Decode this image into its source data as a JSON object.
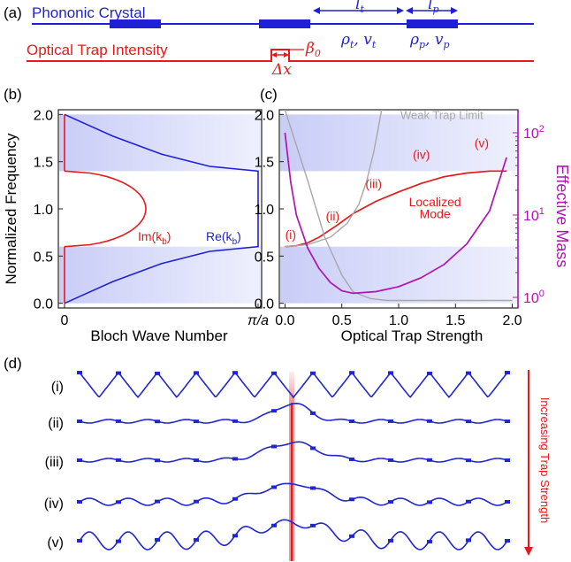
{
  "colors": {
    "crystal": "#1f1fd6",
    "trap": "#e8191b",
    "effmass": "#b012b3",
    "weak": "#a8a8a8",
    "band_fill": "#d9dcfa",
    "mode": "#2026d0"
  },
  "panel_a": {
    "label": "(a)",
    "crystal_label": "Phononic Crystal",
    "trap_label": "Optical Trap Intensity",
    "lt": "l",
    "lt_sub": "t",
    "lp": "l",
    "lp_sub": "p",
    "rho_t": "ρ",
    "rho_t_sub": "t",
    "v_t": "v",
    "v_t_sub": "t",
    "rho_p": "ρ",
    "rho_p_sub": "p",
    "v_p": "v",
    "v_p_sub": "p",
    "beta": "β",
    "beta_sub": "0",
    "dx": "Δx"
  },
  "chart_data": [
    {
      "panel": "(b)",
      "type": "line",
      "xlabel": "Bloch Wave Number",
      "ylabel": "Normalized Frequency",
      "x_ticks": [
        "0",
        "π/a"
      ],
      "y_ticks": [
        "0.0",
        "0.5",
        "1.0",
        "1.5",
        "2.0"
      ],
      "ylim": [
        -0.05,
        2.05
      ],
      "bandgaps": [
        [
          0.0,
          0.6
        ],
        [
          1.4,
          2.0
        ]
      ],
      "series": [
        {
          "name": "Re(k_b)",
          "label_text": "Re(k",
          "label_sub": "b",
          "label_tail": ")",
          "color": "#1f1fd6",
          "x": [
            0,
            0.25,
            0.5,
            0.75,
            1.0
          ],
          "y_lower": [
            0.0,
            0.23,
            0.42,
            0.55,
            0.6
          ],
          "y_upper": [
            2.0,
            1.77,
            1.58,
            1.45,
            1.4
          ]
        },
        {
          "name": "Im(k_b)",
          "label_text": "Im(k",
          "label_sub": "b",
          "label_tail": ")",
          "color": "#e8191b",
          "x": [
            0,
            0.2,
            0.35,
            0.42,
            0.35,
            0.2,
            0
          ],
          "y": [
            0.6,
            0.68,
            0.82,
            1.0,
            1.18,
            1.32,
            1.4
          ]
        }
      ]
    },
    {
      "panel": "(c)",
      "type": "line",
      "xlabel": "Optical Trap Strength",
      "ylabel_left": "",
      "ylabel_right": "Effective Mass",
      "x_ticks": [
        "0.0",
        "0.5",
        "1.0",
        "1.5",
        "2.0"
      ],
      "y_ticks": [
        "0.0",
        "0.5",
        "1.0",
        "1.5",
        "2.0"
      ],
      "y2_ticks": [
        "10",
        "10",
        "10"
      ],
      "y2_ticks_exp": [
        "0",
        "1",
        "2"
      ],
      "xlim": [
        -0.05,
        2.05
      ],
      "ylim": [
        -0.05,
        2.05
      ],
      "y2_log_range": [
        0.0,
        2.0
      ],
      "bandgaps": [
        [
          0.0,
          0.6
        ],
        [
          1.4,
          2.0
        ]
      ],
      "series": [
        {
          "name": "Localized Mode",
          "color": "#e8191b",
          "x": [
            0.0,
            0.1,
            0.2,
            0.3,
            0.45,
            0.6,
            0.8,
            1.0,
            1.2,
            1.4,
            1.6,
            1.8,
            1.95
          ],
          "y": [
            0.6,
            0.61,
            0.64,
            0.7,
            0.82,
            0.95,
            1.08,
            1.18,
            1.27,
            1.34,
            1.38,
            1.4,
            1.4
          ]
        },
        {
          "name": "Weak Trap Limit",
          "color": "#a8a8a8",
          "x": [
            0.0,
            0.2,
            0.4,
            0.55,
            0.65,
            0.72,
            0.78,
            0.82,
            0.85
          ],
          "y": [
            0.6,
            0.62,
            0.7,
            0.85,
            1.05,
            1.3,
            1.6,
            1.85,
            2.05
          ]
        },
        {
          "name": "Weak Trap Limit lower",
          "color": "#a8a8a8",
          "x": [
            0.0,
            0.2,
            0.35,
            0.5,
            0.6,
            0.75,
            0.9,
            1.2,
            1.5,
            1.8,
            2.0
          ],
          "y": [
            2.05,
            1.3,
            0.7,
            0.3,
            0.12,
            0.05,
            0.03,
            0.03,
            0.03,
            0.03,
            0.03
          ]
        },
        {
          "name": "Effective Mass",
          "color": "#b012b3",
          "axis": "right",
          "x": [
            0.0,
            0.05,
            0.1,
            0.2,
            0.3,
            0.4,
            0.5,
            0.6,
            0.8,
            1.0,
            1.2,
            1.4,
            1.6,
            1.8,
            1.95
          ],
          "log10_y": [
            2.0,
            1.4,
            1.0,
            0.6,
            0.35,
            0.18,
            0.08,
            0.05,
            0.07,
            0.13,
            0.24,
            0.4,
            0.65,
            1.05,
            1.7
          ]
        }
      ],
      "annotations": [
        {
          "text": "(i)",
          "x": 0.05,
          "y": 0.68
        },
        {
          "text": "(ii)",
          "x": 0.42,
          "y": 0.88
        },
        {
          "text": "(iii)",
          "x": 0.78,
          "y": 1.22
        },
        {
          "text": "(iv)",
          "x": 1.2,
          "y": 1.53
        },
        {
          "text": "(v)",
          "x": 1.73,
          "y": 1.65
        },
        {
          "text": "Localized",
          "x": 1.32,
          "y": 1.03
        },
        {
          "text": "Mode",
          "x": 1.32,
          "y": 0.9
        },
        {
          "text": "Weak Trap Limit",
          "x": 1.38,
          "y": 1.95
        }
      ]
    }
  ],
  "panel_d": {
    "label": "(d)",
    "arrow_label": "Increasing Trap Strength",
    "rows": [
      {
        "label": "(i)",
        "localization": 0.0,
        "ripple": 0.0
      },
      {
        "label": "(ii)",
        "localization": 0.25,
        "ripple": 0.0
      },
      {
        "label": "(iii)",
        "localization": 0.55,
        "ripple": 0.0
      },
      {
        "label": "(iv)",
        "localization": 0.75,
        "ripple": 0.5
      },
      {
        "label": "(v)",
        "localization": 1.0,
        "ripple": 1.0
      }
    ]
  }
}
